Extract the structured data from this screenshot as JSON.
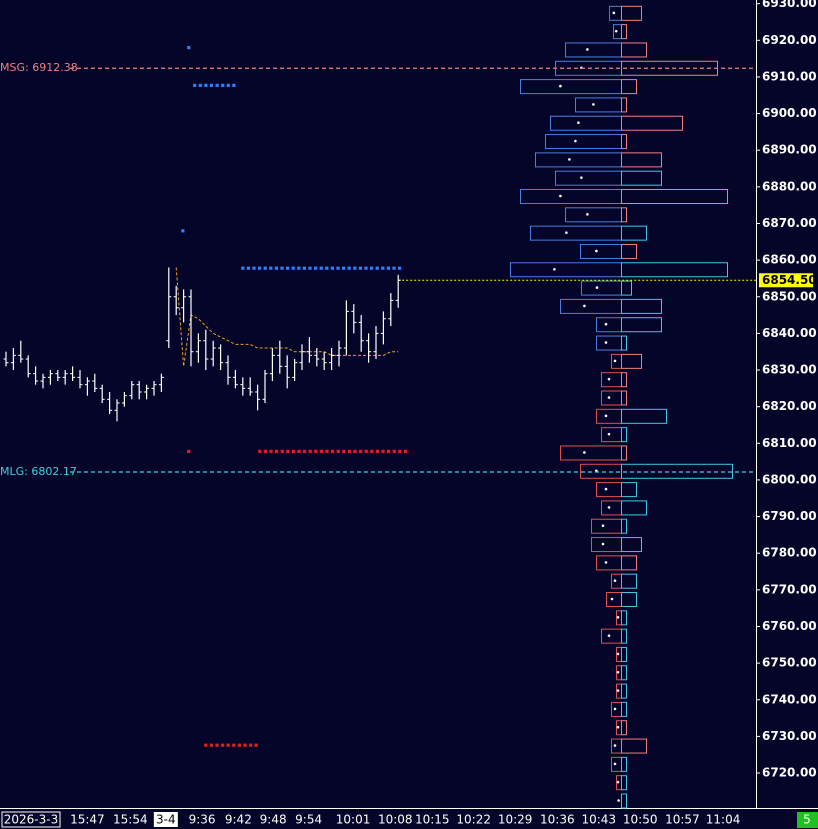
{
  "chart_data": {
    "type": "ohlc",
    "background": "#05052a",
    "ylim": [
      6711,
      6931
    ],
    "yticks": [
      {
        "value": 6930,
        "label": "6930.00"
      },
      {
        "value": 6920,
        "label": "6920.00"
      },
      {
        "value": 6910,
        "label": "6910.00"
      },
      {
        "value": 6900,
        "label": "6900.00"
      },
      {
        "value": 6890,
        "label": "6890.00"
      },
      {
        "value": 6880,
        "label": "6880.00"
      },
      {
        "value": 6870,
        "label": "6870.00"
      },
      {
        "value": 6860,
        "label": "6860.00"
      },
      {
        "value": 6850,
        "label": "6850.00"
      },
      {
        "value": 6840,
        "label": "6840.00"
      },
      {
        "value": 6830,
        "label": "6830.00"
      },
      {
        "value": 6820,
        "label": "6820.00"
      },
      {
        "value": 6810,
        "label": "6810.00"
      },
      {
        "value": 6800,
        "label": "6800.00"
      },
      {
        "value": 6790,
        "label": "6790.00"
      },
      {
        "value": 6780,
        "label": "6780.00"
      },
      {
        "value": 6770,
        "label": "6770.00"
      },
      {
        "value": 6760,
        "label": "6760.00"
      },
      {
        "value": 6750,
        "label": "6750.00"
      },
      {
        "value": 6740,
        "label": "6740.00"
      },
      {
        "value": 6730,
        "label": "6730.00"
      },
      {
        "value": 6720,
        "label": "6720.00"
      }
    ],
    "date_label": "2026-3-3",
    "xticks": [
      {
        "value": 11,
        "label": "15:47"
      },
      {
        "value": 16.8,
        "label": "15:54"
      },
      {
        "value": 21.6,
        "label": "3-4",
        "highlight": true
      },
      {
        "value": 26.5,
        "label": "9:36"
      },
      {
        "value": 31.4,
        "label": "9:42"
      },
      {
        "value": 36.1,
        "label": "9:48"
      },
      {
        "value": 40.9,
        "label": "9:54"
      },
      {
        "value": 46.9,
        "label": "10:01"
      },
      {
        "value": 52.6,
        "label": "10:08"
      },
      {
        "value": 57.6,
        "label": "10:15"
      },
      {
        "value": 63.2,
        "label": "10:22"
      },
      {
        "value": 68.8,
        "label": "10:29"
      },
      {
        "value": 74.5,
        "label": "10:36"
      },
      {
        "value": 80.1,
        "label": "10:43"
      },
      {
        "value": 85.7,
        "label": "10:50"
      },
      {
        "value": 91.4,
        "label": "10:57"
      },
      {
        "value": 96.9,
        "label": "11:04"
      }
    ],
    "candles": {
      "color": "#ffffff",
      "open": [
        6833,
        6832,
        6834,
        6833,
        6829,
        6827,
        6828,
        6829,
        6828,
        6829,
        6828,
        6826,
        6827,
        6825,
        6822,
        6819,
        6821,
        6823,
        6826,
        6824,
        6825,
        6826,
        6838,
        6850,
        6847,
        6850,
        6835,
        6838,
        6833,
        6836,
        6832,
        6828,
        6826,
        6825,
        6824,
        6822,
        6829,
        6834,
        6831,
        6828,
        6832,
        6835,
        6834,
        6833,
        6832,
        6834,
        6836,
        6846,
        6843,
        6838,
        6835,
        6840,
        6844,
        6849
      ],
      "high": [
        6835,
        6836,
        6838,
        6834,
        6831,
        6829,
        6830,
        6830,
        6830,
        6831,
        6830,
        6828,
        6829,
        6826,
        6824,
        6822,
        6824,
        6827,
        6827,
        6826,
        6827,
        6829,
        6858,
        6853,
        6852,
        6852,
        6840,
        6841,
        6838,
        6837,
        6834,
        6830,
        6828,
        6828,
        6826,
        6830,
        6836,
        6838,
        6834,
        6833,
        6837,
        6839,
        6836,
        6835,
        6836,
        6838,
        6849,
        6848,
        6845,
        6840,
        6842,
        6846,
        6851,
        6856
      ],
      "low": [
        6831,
        6830,
        6832,
        6828,
        6826,
        6825,
        6826,
        6827,
        6826,
        6827,
        6825,
        6823,
        6824,
        6821,
        6818,
        6816,
        6820,
        6822,
        6822,
        6822,
        6823,
        6824,
        6836,
        6845,
        6843,
        6831,
        6832,
        6830,
        6831,
        6830,
        6826,
        6825,
        6823,
        6823,
        6819,
        6821,
        6827,
        6829,
        6825,
        6827,
        6830,
        6832,
        6831,
        6830,
        6830,
        6831,
        6834,
        6840,
        6835,
        6832,
        6833,
        6837,
        6842,
        6847
      ],
      "close": [
        6832,
        6834,
        6833,
        6829,
        6827,
        6828,
        6829,
        6828,
        6829,
        6828,
        6826,
        6827,
        6825,
        6822,
        6819,
        6821,
        6823,
        6826,
        6824,
        6825,
        6826,
        6828,
        6850,
        6847,
        6850,
        6835,
        6838,
        6833,
        6836,
        6832,
        6828,
        6826,
        6825,
        6824,
        6822,
        6829,
        6834,
        6831,
        6828,
        6832,
        6835,
        6834,
        6833,
        6832,
        6834,
        6836,
        6846,
        6843,
        6838,
        6835,
        6840,
        6844,
        6849,
        6854.5
      ]
    },
    "overlay": {
      "color": "#e8a020",
      "values": [
        null,
        null,
        null,
        null,
        null,
        null,
        null,
        null,
        null,
        null,
        null,
        null,
        null,
        null,
        null,
        null,
        null,
        null,
        null,
        null,
        null,
        null,
        null,
        6858,
        6831,
        6845,
        6844,
        6842,
        6840,
        6839,
        6838,
        6837,
        6837,
        6837,
        6836,
        6836,
        6836,
        6836,
        6836,
        6835,
        6835,
        6835,
        6835,
        6835,
        6834,
        6834,
        6834,
        6834,
        6834,
        6834,
        6834,
        6834,
        6835,
        6835
      ]
    },
    "lines": [
      {
        "label": "MSG: 6912.38",
        "value": 6912.38,
        "color": "#f08080"
      },
      {
        "label": "MLG: 6802.17",
        "value": 6802.17,
        "color": "#40d0e0"
      }
    ],
    "last_price": {
      "value": 6854.5,
      "label": "6854.50",
      "color": "#ffff00"
    },
    "markers": [
      {
        "value": 6907.7,
        "start": 25.5,
        "end": 31.4,
        "color": "#2f7fff"
      },
      {
        "value": 6857.8,
        "start": 32,
        "end": 53.9,
        "color": "#2f7fff"
      },
      {
        "value": 6807.8,
        "start": 34.3,
        "end": 54.2,
        "color": "#e02020"
      },
      {
        "value": 6727.6,
        "start": 27,
        "end": 34,
        "color": "#e02020"
      },
      {
        "value": 6918,
        "start": 24.7,
        "end": 24.7,
        "color": "#2f7fff"
      },
      {
        "value": 6868,
        "start": 23.9,
        "end": 23.9,
        "color": "#2f7fff"
      },
      {
        "value": 6807.8,
        "start": 24.7,
        "end": 24.7,
        "color": "#e02020"
      }
    ],
    "profile": {
      "palette": {
        "blue": "#4a7fe0",
        "red": "#e05050",
        "cyan": "#40c8e8",
        "salmon": "#f08080"
      },
      "levels": [
        6927.5,
        6922.5,
        6917.5,
        6912.5,
        6907.5,
        6902.5,
        6897.5,
        6892.5,
        6887.5,
        6882.5,
        6877.5,
        6872.5,
        6867.5,
        6862.5,
        6857.5,
        6852.5,
        6847.5,
        6842.5,
        6837.5,
        6832.5,
        6827.5,
        6822.5,
        6817.5,
        6812.5,
        6807.5,
        6802.5,
        6797.5,
        6792.5,
        6787.5,
        6782.5,
        6777.5,
        6772.5,
        6767.5,
        6762.5,
        6757.5,
        6752.5,
        6747.5,
        6742.5,
        6737.5,
        6732.5,
        6727.5,
        6722.5,
        6717.5,
        6712.5
      ],
      "left": [
        12,
        8,
        56,
        66,
        101,
        46,
        71,
        76,
        86,
        66,
        101,
        56,
        91,
        41,
        111,
        40,
        61,
        25,
        25,
        10,
        20,
        20,
        25,
        20,
        61,
        41,
        25,
        20,
        30,
        30,
        25,
        10,
        15,
        5,
        20,
        5,
        5,
        5,
        10,
        5,
        10,
        10,
        5,
        0
      ],
      "right": [
        20,
        5,
        25,
        96,
        15,
        5,
        61,
        5,
        40,
        40,
        106,
        5,
        25,
        15,
        106,
        10,
        40,
        40,
        5,
        20,
        5,
        5,
        45,
        5,
        5,
        111,
        15,
        25,
        5,
        20,
        15,
        15,
        15,
        5,
        5,
        5,
        5,
        5,
        5,
        5,
        25,
        5,
        5,
        5
      ],
      "left_colors": [
        "blue",
        "blue",
        "blue",
        "blue",
        "blue",
        "blue",
        "blue",
        "blue",
        "blue",
        "blue",
        "blue",
        "blue",
        "blue",
        "blue",
        "blue",
        "blue",
        "blue",
        "blue",
        "blue",
        "red",
        "red",
        "red",
        "red",
        "red",
        "red",
        "red",
        "red",
        "red",
        "red",
        "red",
        "red",
        "red",
        "red",
        "red",
        "red",
        "red",
        "red",
        "red",
        "red",
        "red",
        "red",
        "red",
        "red",
        "red"
      ],
      "right_colors": [
        "salmon",
        "salmon",
        "salmon",
        "salmon",
        "salmon",
        "salmon",
        "salmon",
        "salmon",
        "salmon",
        "cyan",
        "cyan",
        "salmon",
        "cyan",
        "salmon",
        "cyan",
        "cyan",
        "cyan",
        "cyan",
        "cyan",
        "salmon",
        "salmon",
        "salmon",
        "cyan",
        "cyan",
        "salmon",
        "cyan",
        "cyan",
        "cyan",
        "cyan",
        "cyan",
        "salmon",
        "cyan",
        "cyan",
        "cyan",
        "cyan",
        "cyan",
        "cyan",
        "cyan",
        "cyan",
        "salmon",
        "salmon",
        "cyan",
        "cyan",
        "cyan"
      ]
    },
    "badge": "5"
  }
}
